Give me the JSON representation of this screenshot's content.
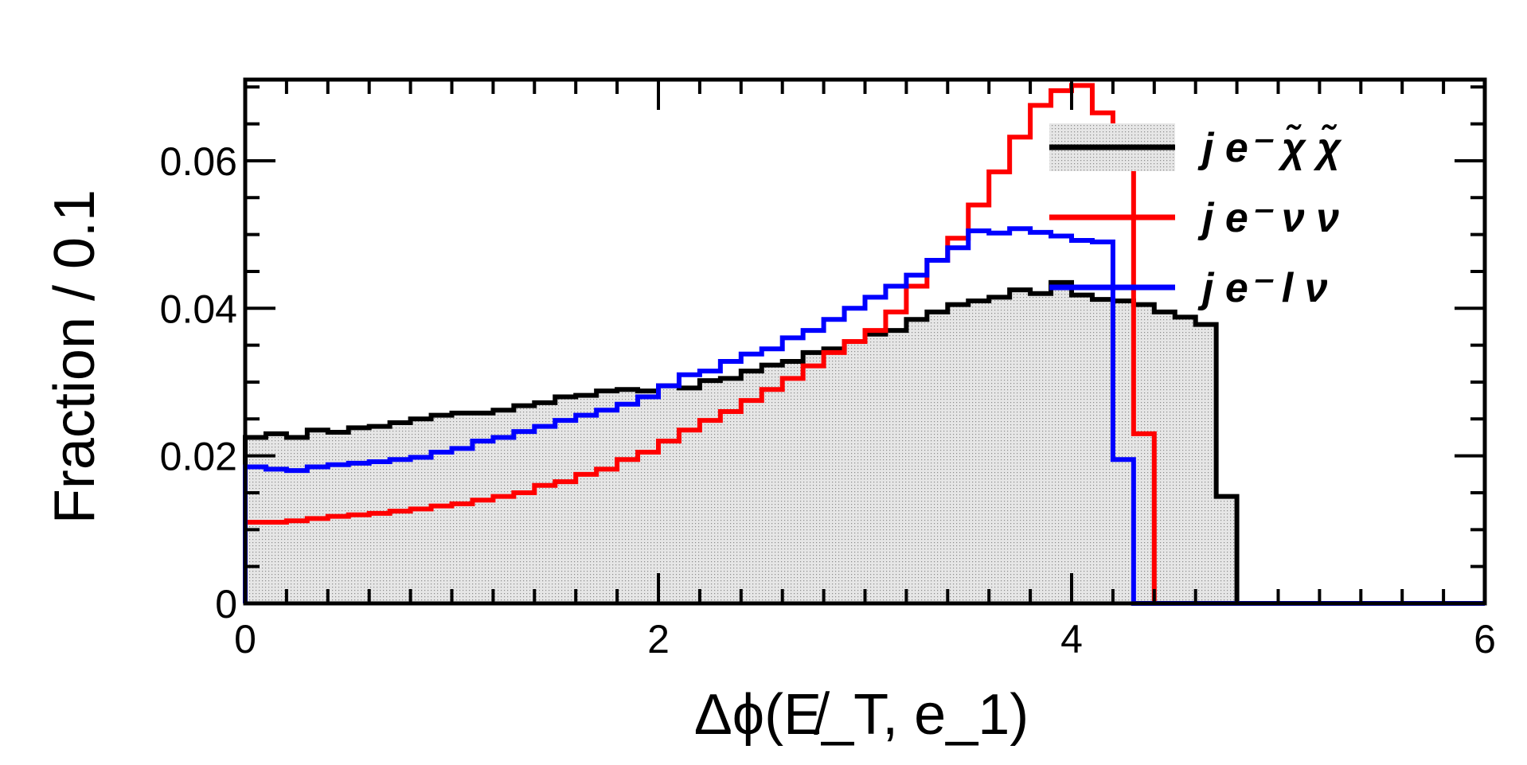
{
  "chart_data": {
    "type": "histogram",
    "xlabel": "Δϕ(E̸_T, e_1)",
    "ylabel": "Fraction / 0.1",
    "xlim": [
      0,
      6
    ],
    "ylim": [
      0,
      0.071
    ],
    "x_ticks": [
      "0",
      "2",
      "4",
      "6"
    ],
    "y_ticks": [
      "0",
      "0.02",
      "0.04",
      "0.06"
    ],
    "bin_width": 0.1,
    "grid": false,
    "legend_position": "top-right",
    "series": [
      {
        "name": "j e⁻ χ̃ χ̃",
        "color": "#000000",
        "fill": "#d9d9d9",
        "values": [
          0.0225,
          0.023,
          0.0225,
          0.0235,
          0.0232,
          0.0238,
          0.024,
          0.0245,
          0.025,
          0.0255,
          0.0258,
          0.0258,
          0.0262,
          0.0268,
          0.0272,
          0.028,
          0.0282,
          0.0288,
          0.029,
          0.0288,
          0.0295,
          0.0292,
          0.0302,
          0.0305,
          0.0315,
          0.0323,
          0.0328,
          0.034,
          0.0345,
          0.0355,
          0.0365,
          0.037,
          0.0385,
          0.0395,
          0.0405,
          0.041,
          0.0415,
          0.0425,
          0.042,
          0.0435,
          0.0418,
          0.0412,
          0.041,
          0.0405,
          0.0395,
          0.0388,
          0.0378,
          0.0145,
          0,
          0,
          0,
          0,
          0,
          0,
          0,
          0,
          0,
          0,
          0,
          0
        ]
      },
      {
        "name": "j e⁻ ν ν",
        "color": "#ff0000",
        "values": [
          0.011,
          0.011,
          0.0112,
          0.0115,
          0.0118,
          0.012,
          0.0122,
          0.0125,
          0.0128,
          0.0132,
          0.0135,
          0.014,
          0.0145,
          0.015,
          0.016,
          0.0165,
          0.0175,
          0.0182,
          0.0195,
          0.0205,
          0.022,
          0.0235,
          0.0248,
          0.026,
          0.0275,
          0.029,
          0.0305,
          0.0322,
          0.034,
          0.0355,
          0.037,
          0.0395,
          0.043,
          0.0465,
          0.0495,
          0.054,
          0.0585,
          0.0632,
          0.0675,
          0.0695,
          0.0702,
          0.0665,
          0.061,
          0.023,
          0,
          0,
          0,
          0,
          0,
          0,
          0,
          0,
          0,
          0,
          0,
          0,
          0,
          0,
          0,
          0
        ]
      },
      {
        "name": "j e⁻ l ν",
        "color": "#0000ff",
        "values": [
          0.0185,
          0.0182,
          0.018,
          0.0185,
          0.0188,
          0.019,
          0.0192,
          0.0195,
          0.0198,
          0.0205,
          0.021,
          0.022,
          0.0225,
          0.0233,
          0.024,
          0.0248,
          0.0255,
          0.0262,
          0.027,
          0.028,
          0.0295,
          0.031,
          0.0315,
          0.0328,
          0.0338,
          0.0345,
          0.036,
          0.037,
          0.0385,
          0.04,
          0.0415,
          0.043,
          0.0445,
          0.0465,
          0.0482,
          0.0505,
          0.0502,
          0.0508,
          0.0503,
          0.0498,
          0.0492,
          0.049,
          0.0195,
          0,
          0,
          0,
          0,
          0,
          0,
          0,
          0,
          0,
          0,
          0,
          0,
          0,
          0,
          0,
          0,
          0
        ]
      }
    ]
  }
}
